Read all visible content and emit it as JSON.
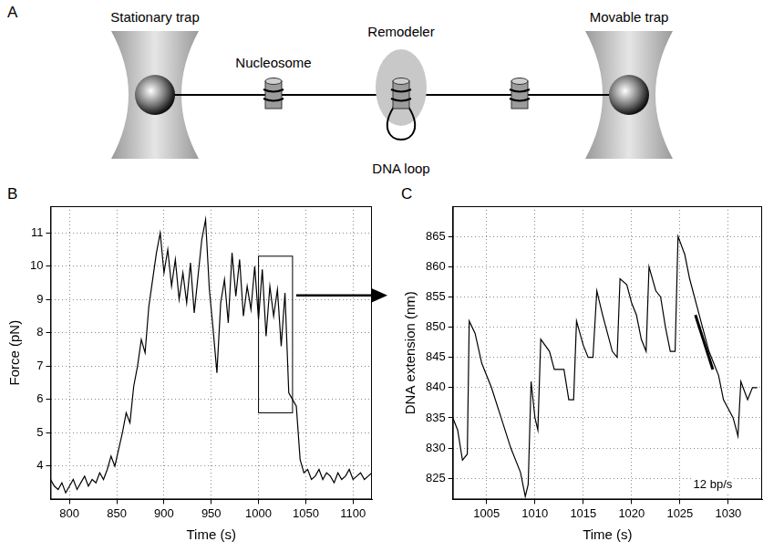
{
  "diagram": {
    "panel": "A",
    "labels": {
      "stationary_trap": "Stationary trap",
      "nucleosome": "Nucleosome",
      "remodeler": "Remodeler",
      "movable_trap": "Movable trap",
      "dna_loop": "DNA loop"
    }
  },
  "chart_data": [
    {
      "type": "line",
      "panel": "B",
      "color": "#000000",
      "grid": true,
      "x_label": "Time (s)",
      "y_label": "Force (pN)",
      "x": [
        780,
        784,
        788,
        792,
        796,
        800,
        804,
        808,
        812,
        816,
        820,
        824,
        828,
        832,
        836,
        840,
        844,
        848,
        852,
        856,
        860,
        864,
        868,
        872,
        876,
        880,
        884,
        888,
        892,
        896,
        900,
        904,
        908,
        912,
        916,
        920,
        924,
        928,
        932,
        936,
        940,
        944,
        948,
        952,
        956,
        960,
        964,
        968,
        972,
        976,
        980,
        984,
        988,
        992,
        996,
        1000,
        1004,
        1008,
        1012,
        1016,
        1020,
        1024,
        1028,
        1032,
        1036,
        1040,
        1044,
        1048,
        1052,
        1056,
        1060,
        1064,
        1068,
        1072,
        1076,
        1080,
        1084,
        1088,
        1092,
        1096,
        1100,
        1104,
        1108,
        1112,
        1116,
        1120
      ],
      "values": [
        3.6,
        3.4,
        3.3,
        3.5,
        3.2,
        3.4,
        3.6,
        3.3,
        3.5,
        3.7,
        3.4,
        3.6,
        3.5,
        3.8,
        3.6,
        3.9,
        4.3,
        4.0,
        4.5,
        5.0,
        5.6,
        5.3,
        6.4,
        7.0,
        7.8,
        7.4,
        8.8,
        9.6,
        10.4,
        11.0,
        9.8,
        10.5,
        9.4,
        10.2,
        9.0,
        9.8,
        8.9,
        10.1,
        8.6,
        9.7,
        10.8,
        11.4,
        9.3,
        8.1,
        6.8,
        8.9,
        9.6,
        8.3,
        10.4,
        9.1,
        10.2,
        8.5,
        9.4,
        8.7,
        10.0,
        8.4,
        9.9,
        7.9,
        9.4,
        8.5,
        9.3,
        7.6,
        9.2,
        6.2,
        6.0,
        5.8,
        4.2,
        3.8,
        3.9,
        3.6,
        3.7,
        3.9,
        3.6,
        3.8,
        3.7,
        3.5,
        3.8,
        3.6,
        3.7,
        3.9,
        3.6,
        3.7,
        3.8,
        3.6,
        3.7,
        3.8
      ],
      "xlim": [
        780,
        1120
      ],
      "xticks": [
        800,
        850,
        900,
        950,
        1000,
        1050,
        1100
      ],
      "ylim": [
        3,
        11.8
      ],
      "yticks": [
        4,
        5,
        6,
        7,
        8,
        9,
        10,
        11
      ],
      "highlight": {
        "x": [
          1000,
          1036
        ],
        "y": [
          5.6,
          10.3
        ]
      }
    },
    {
      "type": "line",
      "panel": "C",
      "color": "#000000",
      "grid": true,
      "x_label": "Time (s)",
      "y_label": "DNA extension (nm)",
      "x": [
        1001.5,
        1002,
        1002.5,
        1003,
        1003.2,
        1003.8,
        1004.5,
        1005.5,
        1006.5,
        1007.5,
        1008.5,
        1009,
        1009.3,
        1009.6,
        1010,
        1010.3,
        1010.6,
        1011.5,
        1012,
        1013,
        1013.5,
        1014,
        1014.3,
        1015,
        1015.5,
        1016,
        1016.4,
        1017,
        1017.5,
        1018,
        1018.5,
        1018.8,
        1019.5,
        1020,
        1020.5,
        1021,
        1021.5,
        1021.8,
        1022.5,
        1023,
        1023.5,
        1024,
        1024.5,
        1024.8,
        1025.5,
        1026,
        1027,
        1028,
        1029,
        1029.5,
        1030.5,
        1031,
        1031.3,
        1032,
        1032.5,
        1033
      ],
      "values": [
        835,
        833,
        828,
        829,
        851,
        849,
        844,
        840,
        835,
        830,
        826,
        822,
        824,
        841,
        835,
        833,
        848,
        846,
        843,
        843,
        838,
        838,
        851,
        847,
        845,
        845,
        856,
        852,
        849,
        846,
        845,
        858,
        857,
        854,
        852,
        848,
        846,
        860,
        856,
        855,
        850,
        846,
        846,
        865,
        862,
        858,
        852,
        846,
        842,
        838,
        835,
        832,
        841,
        838,
        840,
        840
      ],
      "xlim": [
        1001.5,
        1033.5
      ],
      "xticks": [
        1005,
        1010,
        1015,
        1020,
        1025,
        1030
      ],
      "ylim": [
        821.5,
        870
      ],
      "yticks": [
        825,
        830,
        835,
        840,
        845,
        850,
        855,
        860,
        865
      ],
      "annotations": [
        {
          "text": "12 bp/s",
          "x": [
            1026.6,
            1028.4
          ],
          "y": [
            852,
            843
          ]
        }
      ]
    }
  ]
}
